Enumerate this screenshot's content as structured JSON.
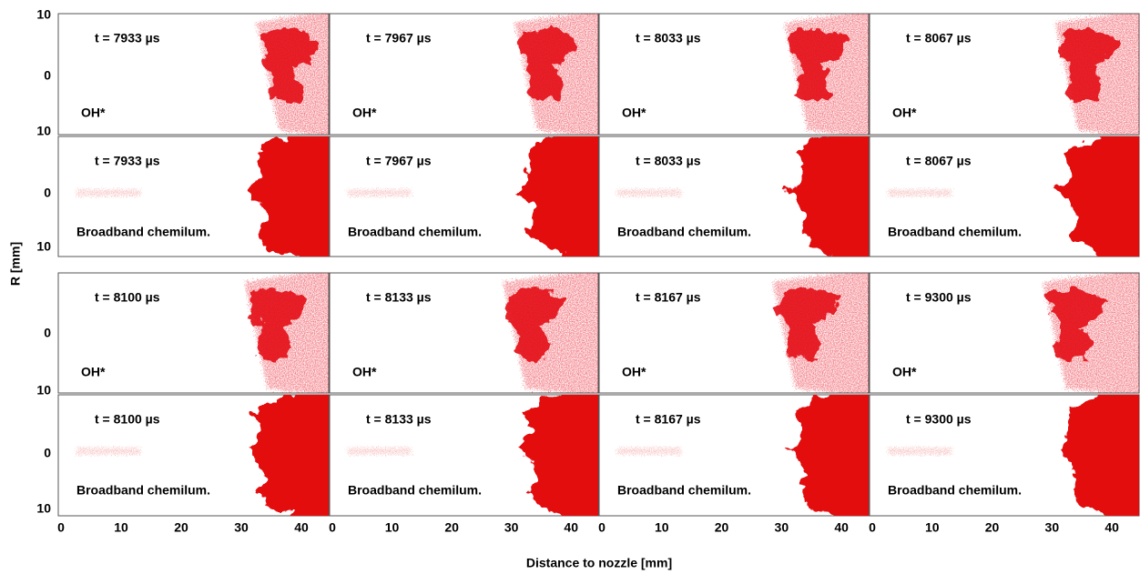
{
  "figure": {
    "y_axis_title": "R [mm]",
    "x_axis_title": "Distance to nozzle [mm]",
    "x_tick_labels": [
      "0",
      "10",
      "20",
      "30",
      "40"
    ],
    "y_tick_labels": [
      [
        "10",
        "0",
        "10"
      ],
      [
        "0",
        "10"
      ],
      [
        "0",
        "10"
      ],
      [
        "0",
        "10"
      ]
    ],
    "panels": [
      {
        "time": "t = 7933 µs",
        "label": "OH*"
      },
      {
        "time": "t = 7967 µs",
        "label": "OH*"
      },
      {
        "time": "t = 8033 µs",
        "label": "OH*"
      },
      {
        "time": "t = 8067 µs",
        "label": "OH*"
      },
      {
        "time": "t = 7933 µs",
        "label": "Broadband chemilum."
      },
      {
        "time": "t = 7967 µs",
        "label": "Broadband chemilum."
      },
      {
        "time": "t = 8033 µs",
        "label": "Broadband chemilum."
      },
      {
        "time": "t = 8067 µs",
        "label": "Broadband chemilum."
      },
      {
        "time": "t = 8100 µs",
        "label": "OH*"
      },
      {
        "time": "t = 8133 µs",
        "label": "OH*"
      },
      {
        "time": "t = 8167 µs",
        "label": "OH*"
      },
      {
        "time": "t = 9300 µs",
        "label": "OH*"
      },
      {
        "time": "t = 8100 µs",
        "label": "Broadband chemilum."
      },
      {
        "time": "t = 8133 µs",
        "label": "Broadband chemilum."
      },
      {
        "time": "t = 8167 µs",
        "label": "Broadband chemilum."
      },
      {
        "time": "t = 9300 µs",
        "label": "Broadband chemilum."
      }
    ]
  }
}
